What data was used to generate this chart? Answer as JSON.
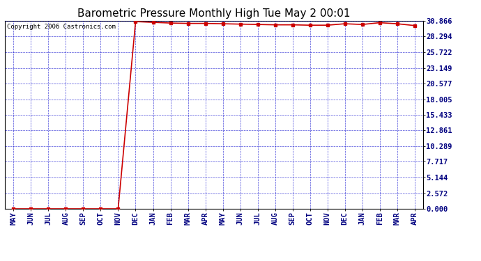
{
  "title": "Barometric Pressure Monthly High Tue May 2 00:01",
  "copyright": "Copyright 2006 Castronics.com",
  "x_labels": [
    "MAY",
    "JUN",
    "JUL",
    "AUG",
    "SEP",
    "OCT",
    "NOV",
    "DEC",
    "JAN",
    "FEB",
    "MAR",
    "APR",
    "MAY",
    "JUN",
    "JUL",
    "AUG",
    "SEP",
    "OCT",
    "NOV",
    "DEC",
    "JAN",
    "FEB",
    "MAR",
    "APR"
  ],
  "y_values": [
    0.0,
    0.0,
    0.0,
    0.0,
    0.0,
    0.0,
    0.0,
    30.748,
    30.63,
    30.512,
    30.453,
    30.453,
    30.394,
    30.335,
    30.276,
    30.218,
    30.218,
    30.159,
    30.159,
    30.394,
    30.276,
    30.571,
    30.394,
    30.1
  ],
  "y_ticks": [
    0.0,
    2.572,
    5.144,
    7.717,
    10.289,
    12.861,
    15.433,
    18.005,
    20.577,
    23.149,
    25.722,
    28.294,
    30.866
  ],
  "y_max": 30.866,
  "y_min": 0.0,
  "line_color": "#cc0000",
  "marker": "s",
  "marker_size": 2.5,
  "bg_color": "#ffffff",
  "plot_bg": "#ffffff",
  "grid_color": "#0000cc",
  "title_fontsize": 11,
  "copyright_fontsize": 6.5,
  "tick_fontsize": 7.5,
  "tick_label_color": "#000080"
}
